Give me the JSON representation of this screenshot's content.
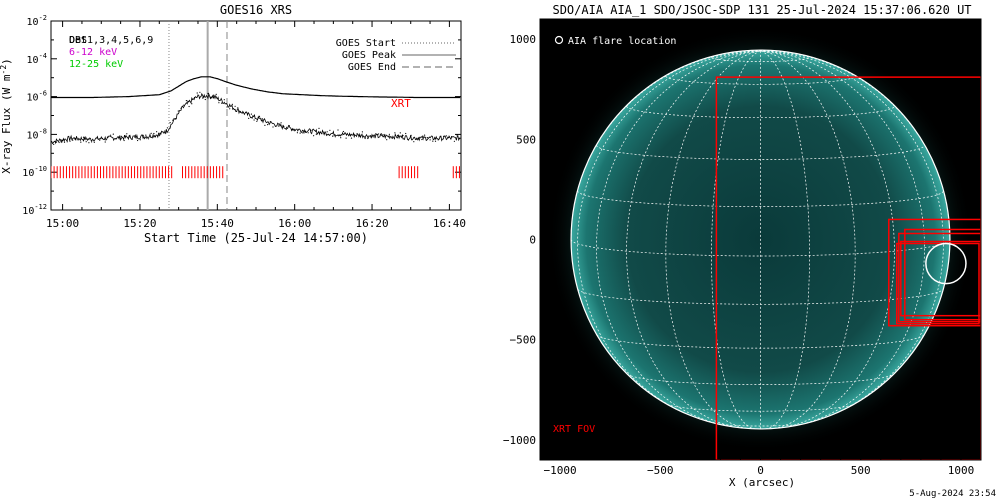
{
  "chart_data": [
    {
      "type": "line",
      "title": "GOES16 XRS",
      "xlabel": "Start Time (25-Jul-24 14:57:00)",
      "ylabel": "X-ray Flux (W m",
      "ylabel_sup": "-2",
      "ylabel_end": ")",
      "x_unit": "minutes since 14:57:00",
      "xlim": [
        0,
        106
      ],
      "ylim_log10": [
        -12,
        -2
      ],
      "y_ticks": [
        {
          "exp": -2,
          "base": "10",
          "sup": "-2"
        },
        {
          "exp": -4,
          "base": "10",
          "sup": "-4"
        },
        {
          "exp": -6,
          "base": "10",
          "sup": "-6"
        },
        {
          "exp": -8,
          "base": "10",
          "sup": "-8"
        },
        {
          "exp": -10,
          "base": "10",
          "sup": "-10"
        },
        {
          "exp": -12,
          "base": "10",
          "sup": "-12"
        }
      ],
      "x_ticks": [
        {
          "t": 3,
          "label": "15:00"
        },
        {
          "t": 23,
          "label": "15:20"
        },
        {
          "t": 43,
          "label": "15:40"
        },
        {
          "t": 63,
          "label": "16:00"
        },
        {
          "t": 83,
          "label": "16:20"
        },
        {
          "t": 103,
          "label": "16:40"
        }
      ],
      "legend_left": [
        {
          "text": "Det1,3,4,5,6,9",
          "color": "#000000"
        },
        {
          "text": "6-12 keV",
          "color": "#cc00cc"
        },
        {
          "text": "12-25 keV",
          "color": "#00cc00"
        }
      ],
      "legend_left_overlap": "OBS",
      "legend_right": [
        {
          "text": "GOES Start",
          "style": "dotted"
        },
        {
          "text": "GOES Peak",
          "style": "solid"
        },
        {
          "text": "GOES End",
          "style": "dashed"
        }
      ],
      "markers": {
        "goes_start": 30.5,
        "goes_peak": 40.5,
        "goes_end": 45.5
      },
      "annotation": {
        "text": "XRT",
        "color": "#ff0000"
      },
      "series": [
        {
          "name": "",
          "x": [
            0,
            10,
            20,
            28,
            31,
            33,
            35,
            37,
            39,
            41,
            43,
            45,
            48,
            52,
            56,
            60,
            65,
            70,
            75,
            80,
            85,
            90,
            95,
            100,
            106
          ],
          "log10": [
            -6.05,
            -6.05,
            -6.0,
            -5.9,
            -5.7,
            -5.45,
            -5.2,
            -5.05,
            -4.95,
            -4.95,
            -5.05,
            -5.2,
            -5.4,
            -5.6,
            -5.75,
            -5.85,
            -5.9,
            -5.95,
            -5.98,
            -6.0,
            -6.02,
            -6.03,
            -6.05,
            -6.05,
            -6.05
          ]
        },
        {
          "name": "",
          "x": [
            0,
            5,
            10,
            15,
            20,
            25,
            28,
            30,
            32,
            34,
            36,
            38,
            40,
            42,
            44,
            46,
            48,
            52,
            56,
            60,
            64,
            68,
            72,
            76,
            80,
            84,
            88,
            92,
            96,
            100,
            106
          ],
          "log10": [
            -8.4,
            -8.2,
            -8.25,
            -8.2,
            -8.15,
            -8.1,
            -8.0,
            -7.8,
            -7.2,
            -6.6,
            -6.25,
            -6.0,
            -5.95,
            -6.0,
            -6.2,
            -6.45,
            -6.7,
            -7.05,
            -7.35,
            -7.6,
            -7.75,
            -7.85,
            -7.95,
            -8.0,
            -8.05,
            -8.1,
            -8.1,
            -8.15,
            -8.2,
            -8.2,
            -8.2
          ]
        }
      ],
      "xrt_ranges": [
        [
          0,
          32
        ],
        [
          34,
          45
        ],
        [
          90,
          95
        ],
        [
          104,
          106
        ]
      ]
    },
    {
      "type": "scatter",
      "title": "SDO/AIA AIA_1 SDO/JSOC-SDP 131 25-Jul-2024 15:37:06.620 UT",
      "xlabel": "X (arcsec)",
      "ylabel": "",
      "xlim": [
        -1100,
        1100
      ],
      "ylim": [
        -1100,
        1100
      ],
      "x_ticks": [
        -1000,
        -500,
        0,
        500,
        1000
      ],
      "y_ticks": [
        -1000,
        -500,
        0,
        500,
        1000
      ],
      "tick_label_x": [
        "−1000",
        "−500",
        "0",
        "500",
        "1000"
      ],
      "tick_label_y": [
        "−1000",
        "−500",
        "0",
        "500",
        "1000"
      ],
      "solar_radius": 945,
      "legend": "AIA flare location",
      "flare_location": {
        "x": 925,
        "y": -120,
        "r": 100
      },
      "fov_label": "XRT FOV",
      "fov_boxes": [
        {
          "x0": -220,
          "x1": 1100,
          "y0": -1100,
          "y1": 810
        },
        {
          "x0": 640,
          "x1": 1100,
          "y0": -430,
          "y1": 100
        },
        {
          "x0": 690,
          "x1": 1100,
          "y0": -410,
          "y1": 30
        },
        {
          "x0": 700,
          "x1": 1100,
          "y0": -380,
          "y1": -10
        },
        {
          "x0": 720,
          "x1": 1100,
          "y0": -400,
          "y1": 50
        },
        {
          "x0": 680,
          "x1": 1090,
          "y0": -420,
          "y1": -20
        }
      ]
    }
  ],
  "footer": {
    "timestamp": "5-Aug-2024 23:54"
  },
  "colors": {
    "axis": "#000000",
    "xrt": "#ff0000",
    "grid": "#ffffff",
    "sun_bg": "#000000"
  }
}
